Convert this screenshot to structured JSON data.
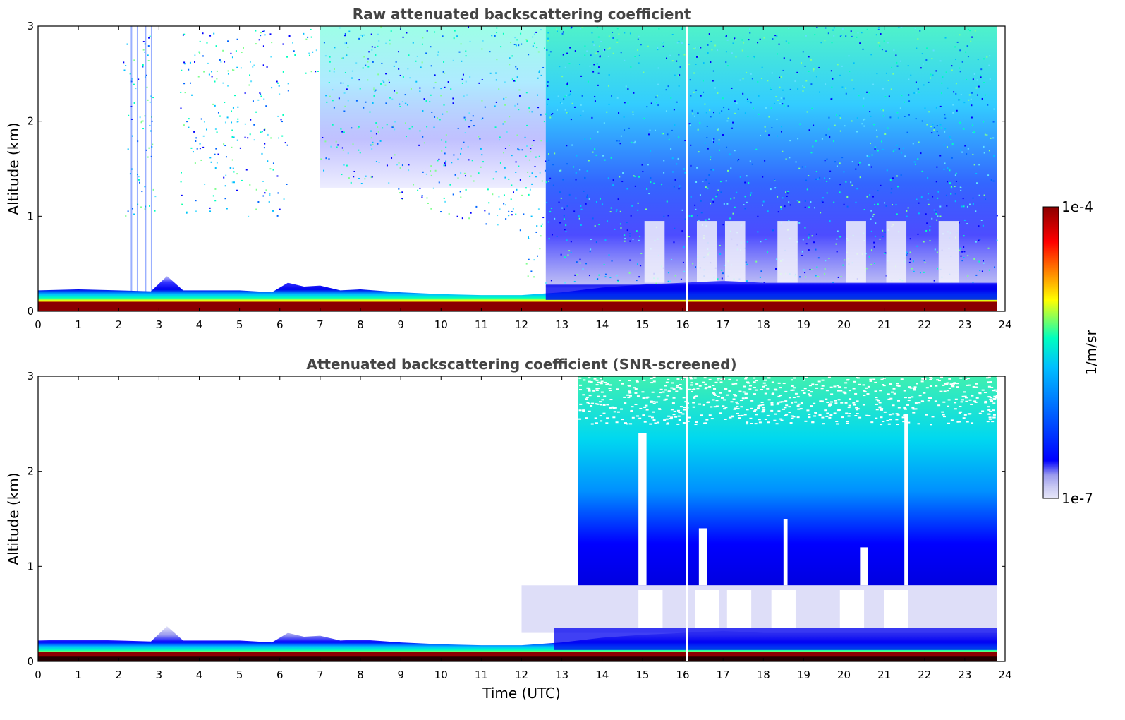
{
  "chart_data": [
    {
      "type": "heatmap",
      "title": "Raw attenuated backscattering coefficient",
      "xlabel": "",
      "ylabel": "Altitude (km)",
      "xlim": [
        0,
        24
      ],
      "ylim": [
        0,
        3
      ],
      "xticks": [
        "0",
        "1",
        "2",
        "3",
        "4",
        "5",
        "6",
        "7",
        "8",
        "9",
        "10",
        "11",
        "12",
        "13",
        "14",
        "15",
        "16",
        "17",
        "18",
        "19",
        "20",
        "21",
        "22",
        "23",
        "24"
      ],
      "yticks": [
        "0",
        "1",
        "2",
        "3"
      ],
      "data_time_range_utc": [
        0,
        23.8
      ],
      "data_gap_time_utc": 16.1,
      "surface_layer_top_km": [
        [
          0,
          0.22
        ],
        [
          1,
          0.23
        ],
        [
          2,
          0.22
        ],
        [
          2.8,
          0.21
        ],
        [
          3.2,
          0.37
        ],
        [
          3.6,
          0.22
        ],
        [
          5,
          0.22
        ],
        [
          5.8,
          0.2
        ],
        [
          6.2,
          0.3
        ],
        [
          6.6,
          0.26
        ],
        [
          7,
          0.27
        ],
        [
          7.5,
          0.22
        ],
        [
          8,
          0.23
        ],
        [
          9,
          0.2
        ],
        [
          10,
          0.18
        ],
        [
          11,
          0.17
        ],
        [
          12,
          0.17
        ],
        [
          13,
          0.2
        ],
        [
          14,
          0.25
        ],
        [
          15,
          0.28
        ],
        [
          16,
          0.3
        ],
        [
          17,
          0.32
        ],
        [
          18,
          0.3
        ],
        [
          19,
          0.3
        ],
        [
          20,
          0.3
        ],
        [
          21,
          0.3
        ],
        [
          22,
          0.3
        ],
        [
          23,
          0.3
        ],
        [
          23.8,
          0.3
        ]
      ],
      "noise_region_time_utc": [
        2.0,
        23.8
      ],
      "noise_region_altitude_km": [
        0.3,
        3.0
      ]
    },
    {
      "type": "heatmap",
      "title": "Attenuated backscattering coefficient (SNR-screened)",
      "xlabel": "Time (UTC)",
      "ylabel": "Altitude (km)",
      "xlim": [
        0,
        24
      ],
      "ylim": [
        0,
        3
      ],
      "xticks": [
        "0",
        "1",
        "2",
        "3",
        "4",
        "5",
        "6",
        "7",
        "8",
        "9",
        "10",
        "11",
        "12",
        "13",
        "14",
        "15",
        "16",
        "17",
        "18",
        "19",
        "20",
        "21",
        "22",
        "23",
        "24"
      ],
      "yticks": [
        "0",
        "1",
        "2",
        "3"
      ],
      "data_time_range_utc": [
        0,
        23.8
      ],
      "data_gap_time_utc": 16.1,
      "screened_signal_region_time_utc": [
        13.4,
        23.8
      ],
      "screened_signal_region_altitude_km": [
        0.8,
        3.0
      ]
    }
  ],
  "colorbar": {
    "label": "1/m/sr",
    "max_label": "1e-4",
    "min_label": "1e-7",
    "scale": "log",
    "range": [
      1e-07,
      0.0001
    ],
    "colors": [
      "#e6e6f8",
      "#c8c8f3",
      "#9a9aee",
      "#0000ff",
      "#0066ff",
      "#00bfff",
      "#00ffbf",
      "#ffff00",
      "#ff8000",
      "#ff0000",
      "#8b0000"
    ]
  }
}
